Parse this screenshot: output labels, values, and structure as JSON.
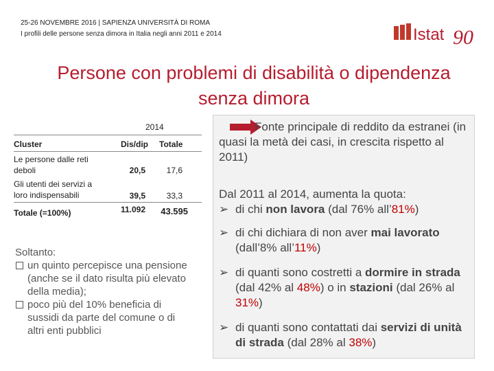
{
  "header": {
    "line1": "25-26 NOVEMBRE 2016 | SAPIENZA UNIVERSITÀ DI ROMA",
    "line2": "I profili delle persone senza dimora in Italia negli anni 2011 e 2014",
    "logo_text": "Istat",
    "logo_number": "90",
    "colors": {
      "brand": "#b51d2e",
      "logo_blocks": "#c0392b"
    }
  },
  "title": {
    "line1": "Persone con problemi di disabilità o dipendenza",
    "line2": "senza dimora"
  },
  "table": {
    "year": "2014",
    "col_cluster": "Cluster",
    "col_disdip": "Dis/dip",
    "col_totale": "Totale",
    "rows": [
      {
        "label1": "Le persone dalle reti",
        "label2": "deboli",
        "disdip": "20,5",
        "totale": "17,6"
      },
      {
        "label1": "Gli utenti dei servizi a",
        "label2": "loro indispensabili",
        "disdip": "39,5",
        "totale": "33,3"
      }
    ],
    "total_label": "Totale (=100%)",
    "total_disdip": "11.092",
    "total_totale": "43.595"
  },
  "note": {
    "intro": "Soltanto:",
    "item1": "un quinto percepisce una pensione (anche se il dato risulta più elevato della media);",
    "item2": "poco più del 10% beneficia di sussidi da parte del comune o di altri enti pubblici"
  },
  "panel": {
    "p1": "Fonte principale di reddito da estranei (in quasi la metà dei casi, in crescita rispetto al 2011)",
    "p2": "Dal 2011 al 2014, aumenta la quota:",
    "b1_pre": "di chi ",
    "b1_bold": "non lavora",
    "b1_mid": " (dal 76% all’",
    "b1_red": "81%",
    "b1_end": ")",
    "b2_pre": "di chi dichiara di non aver ",
    "b2_bold": "mai lavorato",
    "b2_mid": " (dall’8% all’",
    "b2_red": "11%",
    "b2_end": ")",
    "b3_pre": "di quanti sono costretti a ",
    "b3_bold1": "dormire in strada",
    "b3_mid1": " (dal 42% al ",
    "b3_red1": "48%",
    "b3_mid2": ") o in ",
    "b3_bold2": "stazioni",
    "b3_mid3": " (dal 26% al ",
    "b3_red2": "31%",
    "b3_end": ")",
    "b4_pre": "di quanti sono contattati dai ",
    "b4_bold": "servizi di unità di strada",
    "b4_mid": " (dal 28% al ",
    "b4_red": "38%",
    "b4_end": ")",
    "colors": {
      "arrow": "#b51d2e",
      "highlight": "#c00000"
    }
  }
}
